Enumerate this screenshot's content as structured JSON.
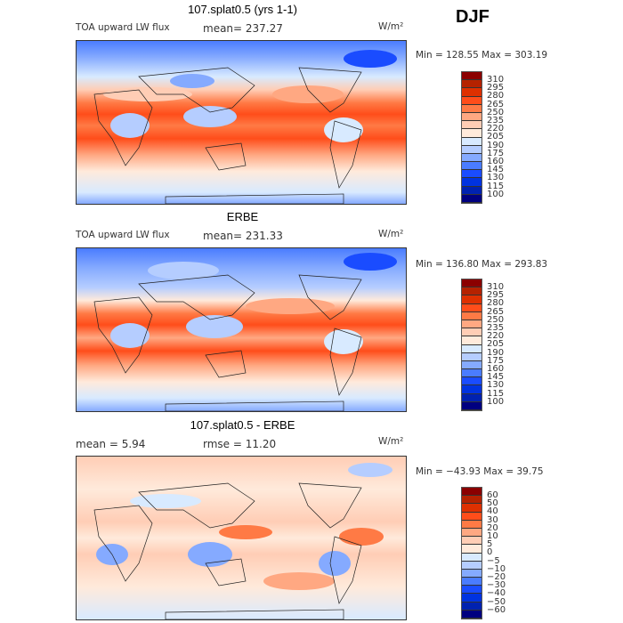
{
  "season": "DJF",
  "units": "W/m²",
  "panels": [
    {
      "title": "107.splat0.5 (yrs 1-1)",
      "left_label": "TOA upward LW flux",
      "stat": "mean= 237.27",
      "minmax": "Min = 128.55 Max = 303.19",
      "levels": [
        "310",
        "295",
        "280",
        "265",
        "250",
        "235",
        "220",
        "205",
        "190",
        "175",
        "160",
        "145",
        "130",
        "115",
        "100"
      ]
    },
    {
      "title": "ERBE",
      "left_label": "TOA upward LW flux",
      "stat": "mean= 231.33",
      "minmax": "Min = 136.80 Max = 293.83",
      "levels": [
        "310",
        "295",
        "280",
        "265",
        "250",
        "235",
        "220",
        "205",
        "190",
        "175",
        "160",
        "145",
        "130",
        "115",
        "100"
      ]
    },
    {
      "title": "107.splat0.5 - ERBE",
      "left_label": "mean =   5.94",
      "stat": "rmse =  11.20",
      "minmax": "Min = −43.93 Max =  39.75",
      "levels": [
        "60",
        "50",
        "40",
        "30",
        "20",
        "10",
        "5",
        "0",
        "−5",
        "−10",
        "−20",
        "−30",
        "−40",
        "−50",
        "−60"
      ]
    }
  ],
  "colors": [
    "#8b0000",
    "#b52200",
    "#de3000",
    "#ff4d1a",
    "#ff7a45",
    "#ffa882",
    "#ffcdb5",
    "#ffeadb",
    "#d8eaff",
    "#b5cdff",
    "#85aaff",
    "#4a7cff",
    "#1a4cff",
    "#0033e0",
    "#0022b0",
    "#000080"
  ]
}
